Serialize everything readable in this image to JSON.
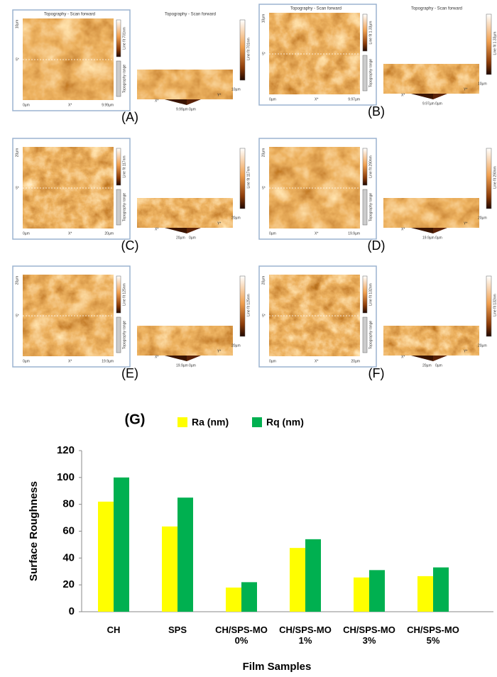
{
  "afm_common": {
    "origin": "0µm",
    "x_axis": "X*",
    "y_axis": "Y*",
    "y_mid": "5*",
    "range": "Topography range"
  },
  "panels": [
    {
      "label": "(A)",
      "title": "Topography - Scan forward",
      "x_end": "9.99µm",
      "y_end": "10µm",
      "scale": "Line fit 701nm"
    },
    {
      "label": "(B)",
      "title": "Topography - Scan forward",
      "x_end": "9.97µm",
      "y_end": "10µm",
      "scale": "Line fit 1.33µm"
    },
    {
      "label": "(C)",
      "x_end": "20µm",
      "y_end": "20µm",
      "scale": "Line fit 117nm"
    },
    {
      "label": "(D)",
      "x_end": "19.9µm",
      "y_end": "20µm",
      "scale": "Line fit 290nm"
    },
    {
      "label": "(E)",
      "x_end": "19.9µm",
      "y_end": "20µm",
      "scale": "Line fit 125nm"
    },
    {
      "label": "(F)",
      "x_end": "20µm",
      "y_end": "20µm",
      "scale": "Line fit 132nm"
    }
  ],
  "chart_data": {
    "type": "bar",
    "title": "(G)",
    "categories": [
      "CH",
      "SPS",
      "CH/SPS-MO 0%",
      "CH/SPS-MO 1%",
      "CH/SPS-MO 3%",
      "CH/SPS-MO 5%"
    ],
    "series": [
      {
        "name": "Ra (nm)",
        "color": "#ffff00",
        "values": [
          82,
          63.5,
          18,
          47.5,
          25.5,
          26.5
        ]
      },
      {
        "name": "Rq (nm)",
        "color": "#00b050",
        "values": [
          100,
          85,
          22,
          54,
          31,
          33
        ]
      }
    ],
    "ylim": [
      0,
      120
    ],
    "yticks": [
      0,
      20,
      40,
      60,
      80,
      100,
      120
    ],
    "y_label": "Surface Roughness",
    "x_label": "Film Samples",
    "grid": false
  }
}
